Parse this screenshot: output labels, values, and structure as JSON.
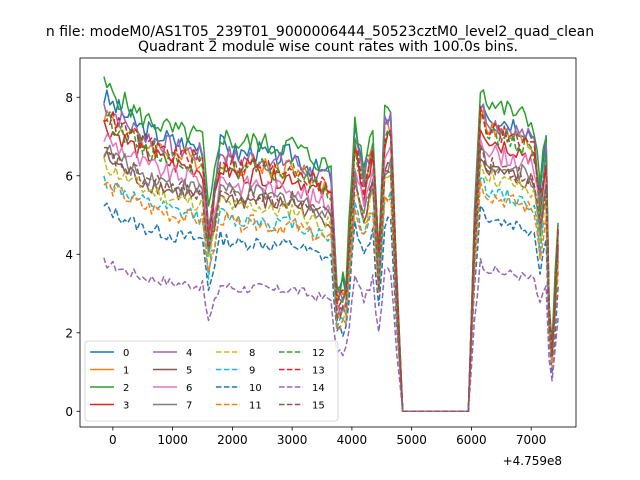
{
  "chart_data": {
    "type": "line",
    "suptitle": "n file: modeM0/AS1T05_239T01_9000006444_50523cztM0_level2_quad_clean",
    "title": "Quadrant 2 module wise count rates with 100.0s bins.",
    "xlabel": "",
    "ylabel": "",
    "offset_text": "+4.759e8",
    "x_offset": 475900000,
    "xlim": [
      -550,
      7750
    ],
    "ylim": [
      -0.4,
      9.0
    ],
    "x_ticks": [
      0,
      1000,
      2000,
      3000,
      4000,
      5000,
      6000,
      7000
    ],
    "x_tick_labels": [
      "0",
      "1000",
      "2000",
      "3000",
      "4000",
      "5000",
      "6000",
      "7000"
    ],
    "y_ticks": [
      0,
      2,
      4,
      6,
      8
    ],
    "y_tick_labels": [
      "0",
      "2",
      "4",
      "6",
      "8"
    ],
    "grid": false,
    "legend_position": "lower-left",
    "legend_ncol": 4,
    "x_segments": [
      [
        -150,
        3750
      ],
      [
        3750,
        4750
      ],
      [
        4850,
        4950
      ],
      [
        4950,
        5950
      ],
      [
        5950,
        7450
      ]
    ],
    "envelope": {
      "x": [
        -150,
        100,
        300,
        500,
        800,
        1000,
        1300,
        1500,
        1600,
        1800,
        2100,
        2400,
        2700,
        3000,
        3300,
        3500,
        3650,
        3750,
        3900,
        4050,
        4200,
        4350,
        4450,
        4550,
        4650,
        4750,
        4850,
        4950,
        5950,
        6050,
        6150,
        6300,
        6500,
        6700,
        6900,
        7050,
        7150,
        7250,
        7300,
        7350,
        7450
      ],
      "y": [
        1.0,
        0.96,
        0.93,
        0.9,
        0.88,
        0.86,
        0.85,
        0.84,
        0.6,
        0.85,
        0.82,
        0.83,
        0.81,
        0.82,
        0.78,
        0.76,
        0.75,
        0.38,
        0.4,
        0.9,
        0.75,
        0.88,
        0.5,
        0.93,
        0.95,
        0.42,
        0.0,
        0.0,
        0.0,
        0.62,
        1.0,
        0.95,
        0.93,
        0.92,
        0.9,
        0.88,
        0.7,
        0.85,
        0.35,
        0.2,
        0.6
      ]
    },
    "series": [
      {
        "name": "0",
        "color": "#1f77b4",
        "style": "solid",
        "base": 8.0
      },
      {
        "name": "1",
        "color": "#ff7f0e",
        "style": "solid",
        "base": 7.6
      },
      {
        "name": "2",
        "color": "#2ca02c",
        "style": "solid",
        "base": 8.3
      },
      {
        "name": "3",
        "color": "#d62728",
        "style": "solid",
        "base": 7.3
      },
      {
        "name": "4",
        "color": "#9467bd",
        "style": "solid",
        "base": 7.8
      },
      {
        "name": "5",
        "color": "#8c564b",
        "style": "solid",
        "base": 6.5
      },
      {
        "name": "6",
        "color": "#e377c2",
        "style": "solid",
        "base": 7.0
      },
      {
        "name": "7",
        "color": "#7f7f7f",
        "style": "solid",
        "base": 6.7
      },
      {
        "name": "8",
        "color": "#bcbd22",
        "style": "dashed",
        "base": 6.3
      },
      {
        "name": "9",
        "color": "#17becf",
        "style": "dashed",
        "base": 5.9
      },
      {
        "name": "10",
        "color": "#1f77b4",
        "style": "dashed",
        "base": 5.2
      },
      {
        "name": "11",
        "color": "#ff7f0e",
        "style": "dashed",
        "base": 5.8
      },
      {
        "name": "12",
        "color": "#2ca02c",
        "style": "dashed",
        "base": 7.5
      },
      {
        "name": "13",
        "color": "#d62728",
        "style": "dashed",
        "base": 7.6
      },
      {
        "name": "14",
        "color": "#9467bd",
        "style": "dashed",
        "base": 3.8
      },
      {
        "name": "15",
        "color": "#8c564b",
        "style": "dashed",
        "base": 6.6
      }
    ]
  }
}
